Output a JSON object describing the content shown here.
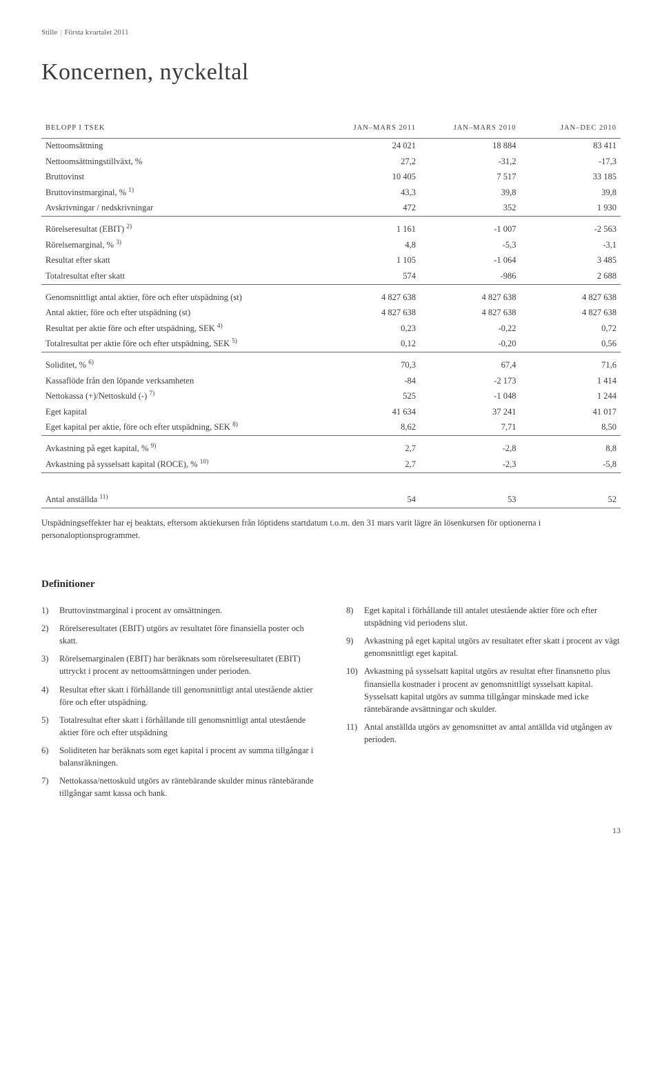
{
  "header": {
    "brand": "Stille",
    "suffix": "Första kvartalet 2011"
  },
  "title": "Koncernen, nyckeltal",
  "table": {
    "columns": [
      "BELOPP I TSEK",
      "JAN–MARS 2011",
      "JAN–MARS 2010",
      "JAN–DEC 2010"
    ],
    "groups": [
      {
        "rows": [
          {
            "label": "Nettoomsättning",
            "v": [
              "24 021",
              "18 884",
              "83 411"
            ]
          },
          {
            "label": "Nettoomsättningstillväxt, %",
            "v": [
              "27,2",
              "-31,2",
              "-17,3"
            ]
          },
          {
            "label": "Bruttovinst",
            "v": [
              "10 405",
              "7 517",
              "33 185"
            ]
          },
          {
            "label": "Bruttovinstmarginal, % ",
            "sup": "1)",
            "v": [
              "43,3",
              "39,8",
              "39,8"
            ]
          },
          {
            "label": "Avskrivningar / nedskrivningar",
            "v": [
              "472",
              "352",
              "1 930"
            ],
            "rule": true
          }
        ]
      },
      {
        "rows": [
          {
            "label": "Rörelseresultat (EBIT) ",
            "sup": "2)",
            "v": [
              "1 161",
              "-1 007",
              "-2 563"
            ]
          },
          {
            "label": "Rörelsemarginal, % ",
            "sup": "3)",
            "v": [
              "4,8",
              "-5,3",
              "-3,1"
            ]
          },
          {
            "label": "Resultat efter skatt",
            "v": [
              "1 105",
              "-1 064",
              "3 485"
            ]
          },
          {
            "label": "Totalresultat efter skatt",
            "v": [
              "574",
              "-986",
              "2 688"
            ],
            "rule": true
          }
        ]
      },
      {
        "rows": [
          {
            "label": "Genomsnittligt antal aktier, före och efter utspädning (st)",
            "v": [
              "4 827 638",
              "4 827 638",
              "4 827 638"
            ]
          },
          {
            "label": "Antal aktier, före och efter utspädning (st)",
            "v": [
              "4 827 638",
              "4 827 638",
              "4 827 638"
            ]
          },
          {
            "label": "Resultat per aktie före och efter utspädning, SEK ",
            "sup": "4)",
            "v": [
              "0,23",
              "-0,22",
              "0,72"
            ]
          },
          {
            "label": "Totalresultat per aktie före och efter utspädning, SEK ",
            "sup": "5)",
            "v": [
              "0,12",
              "-0,20",
              "0,56"
            ],
            "rule": true
          }
        ]
      },
      {
        "rows": [
          {
            "label": "Soliditet, % ",
            "sup": "6)",
            "v": [
              "70,3",
              "67,4",
              "71,6"
            ]
          },
          {
            "label": "Kassaflöde från den löpande verksamheten",
            "v": [
              "-84",
              "-2 173",
              "1 414"
            ]
          },
          {
            "label": "Nettokassa (+)/Nettoskuld (-) ",
            "sup": "7)",
            "v": [
              "525",
              "-1 048",
              "1 244"
            ]
          },
          {
            "label": "Eget kapital",
            "v": [
              "41 634",
              "37 241",
              "41 017"
            ]
          },
          {
            "label": "Eget kapital per aktie, före och efter utspädning, SEK ",
            "sup": "8)",
            "v": [
              "8,62",
              "7,71",
              "8,50"
            ],
            "rule": true
          }
        ]
      },
      {
        "rows": [
          {
            "label": "Avkastning på eget kapital, % ",
            "sup": "9)",
            "v": [
              "2,7",
              "-2,8",
              "8,8"
            ]
          },
          {
            "label": "Avkastning på sysselsatt kapital (ROCE), % ",
            "sup": "10)",
            "v": [
              "2,7",
              "-2,3",
              "-5,8"
            ],
            "rule": true
          }
        ]
      },
      {
        "spacer_lg": true,
        "rows": [
          {
            "label": "Antal anställda ",
            "sup": "11)",
            "v": [
              "54",
              "53",
              "52"
            ],
            "rule": true
          }
        ]
      }
    ]
  },
  "footnote": "Utspädningseffekter har ej beaktats, eftersom aktiekursen från löptidens startdatum t.o.m. den 31 mars varit lägre än lösenkursen för optionerna i personaloptionsprogrammet.",
  "definitions": {
    "title": "Definitioner",
    "left": [
      {
        "n": "1)",
        "t": "Bruttovinstmarginal i procent av omsättningen."
      },
      {
        "n": "2)",
        "t": "Rörelseresultatet (EBIT) utgörs av resultatet före finansiella poster och skatt."
      },
      {
        "n": "3)",
        "t": "Rörelsemarginalen (EBIT) har beräknats som rörelseresultatet (EBIT) uttryckt i procent av nettoomsättningen under perioden."
      },
      {
        "n": "4)",
        "t": "Resultat efter skatt i förhållande till genomsnittligt antal utestående aktier före och efter utspädning."
      },
      {
        "n": "5)",
        "t": "Totalresultat efter skatt i förhållande till genomsnittligt antal utestående aktier före och efter utspädning"
      },
      {
        "n": "6)",
        "t": "Soliditeten har beräknats som eget kapital i procent av summa tillgångar i balansräkningen."
      },
      {
        "n": "7)",
        "t": "Nettokassa/nettoskuld utgörs av räntebärande skulder minus räntebärande tillgångar samt kassa och bank."
      }
    ],
    "right": [
      {
        "n": "8)",
        "t": "Eget kapital i förhållande till antalet utestående aktier före och efter utspädning vid periodens slut."
      },
      {
        "n": "9)",
        "t": "Avkastning på eget kapital utgörs av resultatet efter skatt i procent av vägt genomsnittligt eget kapital."
      },
      {
        "n": "10)",
        "t": "Avkastning på sysselsatt kapital utgörs av resultat efter finansnetto plus finansiella kostnader i procent av genomsnittligt sysselsatt kapital. Sysselsatt kapital utgörs av summa tillgångar minskade med icke räntebärande avsättningar och skulder."
      },
      {
        "n": "11)",
        "t": "Antal anställda utgörs av genomsnittet av antal antällda vid utgången av perioden."
      }
    ]
  },
  "page_number": "13"
}
